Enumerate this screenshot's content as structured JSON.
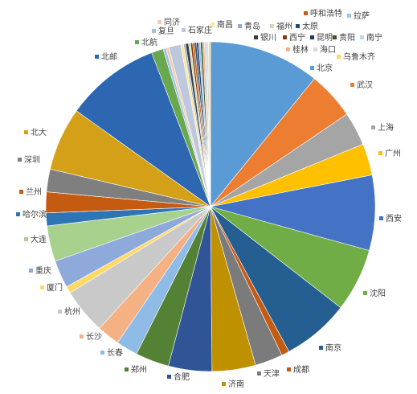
{
  "chart_data": {
    "type": "pie",
    "title": "",
    "legend": "none",
    "slices": [
      {
        "label": "北京",
        "value": 11.2,
        "color": "#5b9bd5"
      },
      {
        "label": "武汉",
        "value": 4.8,
        "color": "#ed7d31"
      },
      {
        "label": "上海",
        "value": 3.4,
        "color": "#a5a5a5"
      },
      {
        "label": "广州",
        "value": 3.2,
        "color": "#ffc000"
      },
      {
        "label": "西安",
        "value": 7.6,
        "color": "#4472c4"
      },
      {
        "label": "沈阳",
        "value": 6.4,
        "color": "#70ad47"
      },
      {
        "label": "南京",
        "value": 6.8,
        "color": "#255e91"
      },
      {
        "label": "成都",
        "value": 0.8,
        "color": "#c55a11"
      },
      {
        "label": "天津",
        "value": 2.8,
        "color": "#7b7b7b"
      },
      {
        "label": "济南",
        "value": 4.4,
        "color": "#bf9000"
      },
      {
        "label": "合肥",
        "value": 4.4,
        "color": "#2f5597"
      },
      {
        "label": "郑州",
        "value": 3.4,
        "color": "#548235"
      },
      {
        "label": "长春",
        "value": 2.2,
        "color": "#8fbce6"
      },
      {
        "label": "长沙",
        "value": 2.3,
        "color": "#f4b183"
      },
      {
        "label": "杭州",
        "value": 4.6,
        "color": "#c9c9c9"
      },
      {
        "label": "厦门",
        "value": 0.7,
        "color": "#ffd966"
      },
      {
        "label": "重庆",
        "value": 2.8,
        "color": "#8eaadb"
      },
      {
        "label": "大连",
        "value": 3.6,
        "color": "#a9d18e"
      },
      {
        "label": "哈尔滨",
        "value": 1.3,
        "color": "#2e75b6"
      },
      {
        "label": "兰州",
        "value": 2.1,
        "color": "#c55a11"
      },
      {
        "label": "深圳",
        "value": 2.3,
        "color": "#7f7f7f"
      },
      {
        "label": "北大",
        "value": 6.4,
        "color": "#d4a017"
      },
      {
        "label": "北邮",
        "value": 9.6,
        "color": "#2e67b1"
      },
      {
        "label": "北航",
        "value": 1.2,
        "color": "#6aa84f"
      },
      {
        "label": "复旦",
        "value": 0.3,
        "color": "#9dc3e6"
      },
      {
        "label": "同济",
        "value": 0.3,
        "color": "#f8cbad"
      },
      {
        "label": "石家庄",
        "value": 1.2,
        "color": "#bcc8dd"
      },
      {
        "label": "南昌",
        "value": 0.3,
        "color": "#ffe699"
      },
      {
        "label": "青岛",
        "value": 0.2,
        "color": "#8faadc"
      },
      {
        "label": "银川",
        "value": 0.3,
        "color": "#3b3b3b"
      },
      {
        "label": "福州",
        "value": 0.2,
        "color": "#c5e0b4"
      },
      {
        "label": "西宁",
        "value": 0.2,
        "color": "#843c0c"
      },
      {
        "label": "呼和浩特",
        "value": 0.2,
        "color": "#c55a11"
      },
      {
        "label": "太原",
        "value": 0.2,
        "color": "#1f4e79"
      },
      {
        "label": "昆明",
        "value": 0.2,
        "color": "#203864"
      },
      {
        "label": "拉萨",
        "value": 0.2,
        "color": "#9dc3e6"
      },
      {
        "label": "贵阳",
        "value": 0.2,
        "color": "#375623"
      },
      {
        "label": "桂林",
        "value": 0.2,
        "color": "#f4b183"
      },
      {
        "label": "南宁",
        "value": 0.2,
        "color": "#bdd7ee"
      },
      {
        "label": "海口",
        "value": 0.2,
        "color": "#d9d9d9"
      },
      {
        "label": "乌鲁木齐",
        "value": 0.2,
        "color": "#ffd966"
      }
    ]
  }
}
